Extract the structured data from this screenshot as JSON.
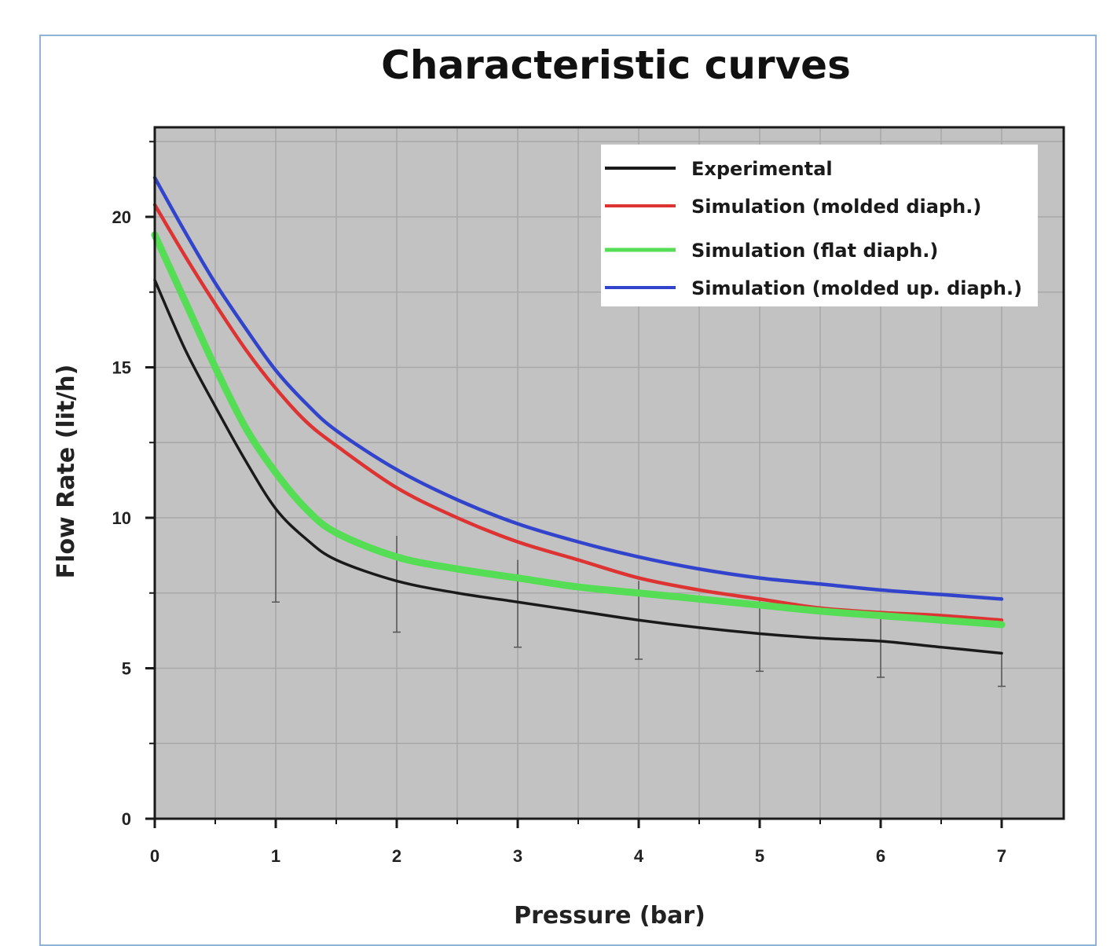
{
  "chart_data": {
    "type": "line",
    "title": "Characteristic curves",
    "xlabel": "Pressure (bar)",
    "ylabel": "Flow Rate (lit/h)",
    "xlim": [
      0,
      7.5
    ],
    "ylim": [
      0,
      23
    ],
    "xticks": [
      "0",
      "1",
      "2",
      "3",
      "4",
      "5",
      "6",
      "7"
    ],
    "yticks": [
      "0",
      "5",
      "10",
      "15",
      "20"
    ],
    "grid": true,
    "legend_position": "top-right",
    "plot_background": "#c2c2c2",
    "series": [
      {
        "name": "Experimental",
        "color": "#1a1a1a",
        "x": [
          0,
          0.25,
          0.5,
          0.75,
          1,
          1.25,
          1.5,
          2,
          2.5,
          3,
          3.5,
          4,
          4.5,
          5,
          5.5,
          6,
          6.5,
          7
        ],
        "y": [
          17.9,
          15.6,
          13.7,
          11.9,
          10.3,
          9.3,
          8.6,
          7.9,
          7.5,
          7.2,
          6.9,
          6.6,
          6.35,
          6.15,
          6.0,
          5.9,
          5.7,
          5.5
        ],
        "error_low": [
          null,
          null,
          null,
          null,
          7.2,
          null,
          null,
          6.2,
          null,
          5.7,
          null,
          5.3,
          null,
          4.9,
          null,
          4.7,
          null,
          4.4
        ],
        "error_high": [
          null,
          null,
          null,
          null,
          10.3,
          null,
          null,
          9.4,
          null,
          8.6,
          null,
          7.9,
          null,
          7.3,
          null,
          6.9,
          null,
          5.5
        ]
      },
      {
        "name": "Simulation (molded diaph.)",
        "color": "#dd3333",
        "x": [
          0,
          0.25,
          0.5,
          0.75,
          1,
          1.25,
          1.5,
          2,
          2.5,
          3,
          3.5,
          4,
          4.5,
          5,
          5.5,
          6,
          6.5,
          7
        ],
        "y": [
          20.4,
          18.7,
          17.1,
          15.6,
          14.3,
          13.2,
          12.4,
          11.0,
          10.0,
          9.2,
          8.6,
          8.0,
          7.6,
          7.3,
          7.0,
          6.85,
          6.75,
          6.6
        ]
      },
      {
        "name": "Simulation (flat diaph.)",
        "color": "#55dd55",
        "x": [
          0,
          0.25,
          0.5,
          0.75,
          1,
          1.25,
          1.5,
          2,
          2.5,
          3,
          3.5,
          4,
          4.5,
          5,
          5.5,
          6,
          6.5,
          7
        ],
        "y": [
          19.4,
          17.2,
          15.0,
          13.0,
          11.5,
          10.3,
          9.5,
          8.7,
          8.3,
          8.0,
          7.7,
          7.5,
          7.3,
          7.1,
          6.9,
          6.75,
          6.6,
          6.45
        ]
      },
      {
        "name": "Simulation (molded up. diaph.)",
        "color": "#3344cc",
        "x": [
          0,
          0.25,
          0.5,
          0.75,
          1,
          1.25,
          1.5,
          2,
          2.5,
          3,
          3.5,
          4,
          4.5,
          5,
          5.5,
          6,
          6.5,
          7
        ],
        "y": [
          21.3,
          19.5,
          17.8,
          16.3,
          14.9,
          13.8,
          12.9,
          11.6,
          10.6,
          9.8,
          9.2,
          8.7,
          8.3,
          8.0,
          7.8,
          7.6,
          7.45,
          7.3
        ]
      }
    ]
  }
}
